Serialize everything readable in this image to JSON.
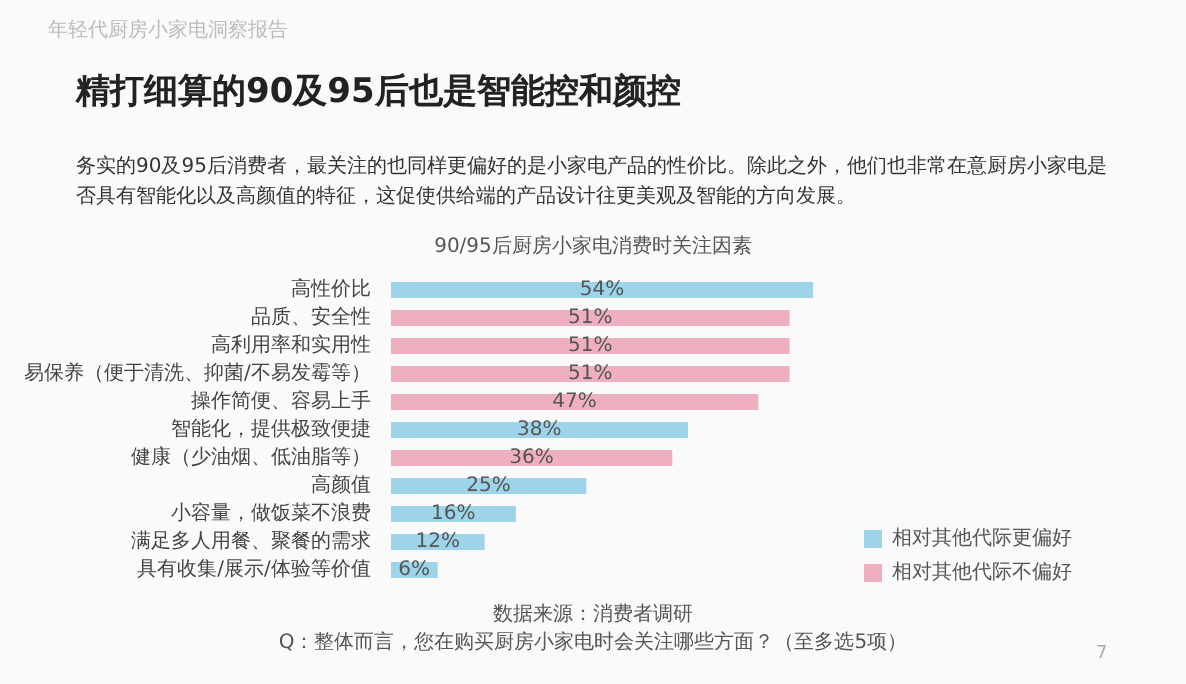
{
  "chart_data": {
    "type": "bar",
    "orientation": "horizontal",
    "title": "精打细算的90及95后也是智能控和颜控",
    "subtitle": "务实的90及95后消费者，最关注的也同样更偏好的是小家电产品的性价比。除此之外，他们也非常在意厨房小家电是否具有智能化以及高颜值的特征，这促使供给端的产品设计往更美观及智能的方向发展。",
    "annotations": [
      "年轻代厨房小家电洞察报告",
      "90/95后厨房小家电消费时关注因素",
      "数据来源：消费者调研",
      "Q：整体而言，您在购买厨房小家电时会关注哪些方面？（至多选5项）",
      "7"
    ],
    "categories": [
      "高性价比",
      "品质、安全性",
      "高利用率和实用性",
      "易保养（便于清洗、抑菌/不易发霉等）",
      "操作简便、容易上手",
      "智能化，提供极致便捷",
      "健康（少油烟、低油脂等）",
      "高颜值",
      "小容量，做饭菜不浪费",
      "满足多人用餐、聚餐的需求",
      "具有收集/展示/体验等价值"
    ],
    "series": [
      {
        "name": "相对其他代际更偏好",
        "color": "#9dd4ea",
        "values": [
          54,
          null,
          null,
          null,
          null,
          38,
          null,
          25,
          16,
          12,
          6
        ],
        "value_labels": [
          "54%",
          null,
          null,
          null,
          null,
          "38%",
          null,
          "25%",
          "16%",
          "12%",
          "6%"
        ]
      },
      {
        "name": "相对其他代际不偏好",
        "color": "#eeb0bf",
        "values": [
          null,
          51,
          51,
          51,
          47,
          null,
          36,
          null,
          null,
          null,
          null
        ],
        "value_labels": [
          null,
          "51%",
          "51%",
          "51%",
          "47%",
          null,
          "36%",
          null,
          null,
          null,
          null
        ]
      }
    ],
    "legend": "bottom right"
  }
}
